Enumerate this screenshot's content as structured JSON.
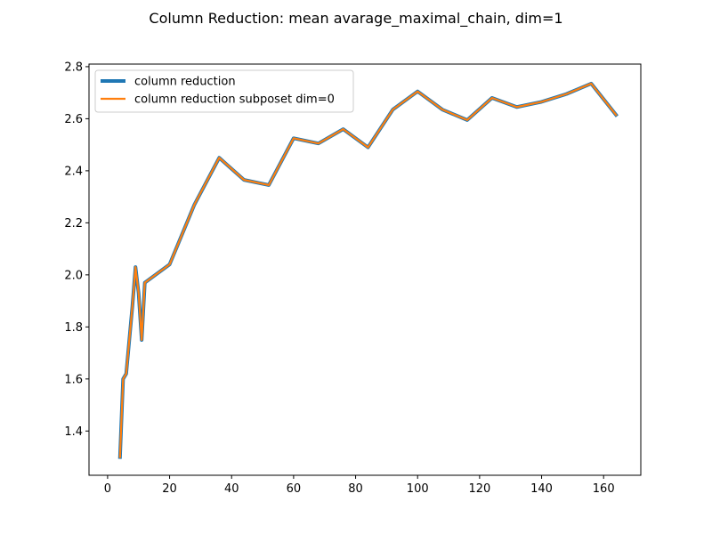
{
  "chart_data": {
    "type": "line",
    "title": "Column Reduction: mean avarage_maximal_chain, dim=1",
    "xlabel": "",
    "ylabel": "",
    "xlim": [
      -6,
      172
    ],
    "ylim": [
      1.23,
      2.81
    ],
    "xticks": [
      0,
      20,
      40,
      60,
      80,
      100,
      120,
      140,
      160
    ],
    "yticks": [
      1.4,
      1.6,
      1.8,
      2.0,
      2.2,
      2.4,
      2.6,
      2.8
    ],
    "xtick_labels": [
      "0",
      "20",
      "40",
      "60",
      "80",
      "100",
      "120",
      "140",
      "160"
    ],
    "ytick_labels": [
      "1.4",
      "1.6",
      "1.8",
      "2.0",
      "2.2",
      "2.4",
      "2.6",
      "2.8"
    ],
    "grid": false,
    "legend_position": "top-left",
    "x": [
      4,
      5,
      6,
      8,
      9,
      10,
      11,
      12,
      20,
      28,
      36,
      44,
      52,
      60,
      68,
      76,
      84,
      92,
      100,
      108,
      116,
      124,
      132,
      140,
      148,
      156,
      164
    ],
    "series": [
      {
        "name": "column reduction",
        "color": "#1f77b4",
        "values": [
          1.3,
          1.6,
          1.62,
          1.88,
          2.03,
          1.93,
          1.75,
          1.97,
          2.04,
          2.27,
          2.45,
          2.365,
          2.345,
          2.525,
          2.505,
          2.56,
          2.49,
          2.635,
          2.705,
          2.635,
          2.595,
          2.68,
          2.645,
          2.665,
          2.695,
          2.735,
          2.615
        ]
      },
      {
        "name": "column reduction subposet dim=0",
        "color": "#ff7f0e",
        "values": [
          1.3,
          1.6,
          1.62,
          1.88,
          2.03,
          1.93,
          1.75,
          1.97,
          2.04,
          2.27,
          2.45,
          2.365,
          2.345,
          2.525,
          2.505,
          2.56,
          2.49,
          2.635,
          2.705,
          2.635,
          2.595,
          2.68,
          2.645,
          2.665,
          2.695,
          2.735,
          2.615
        ]
      }
    ]
  }
}
